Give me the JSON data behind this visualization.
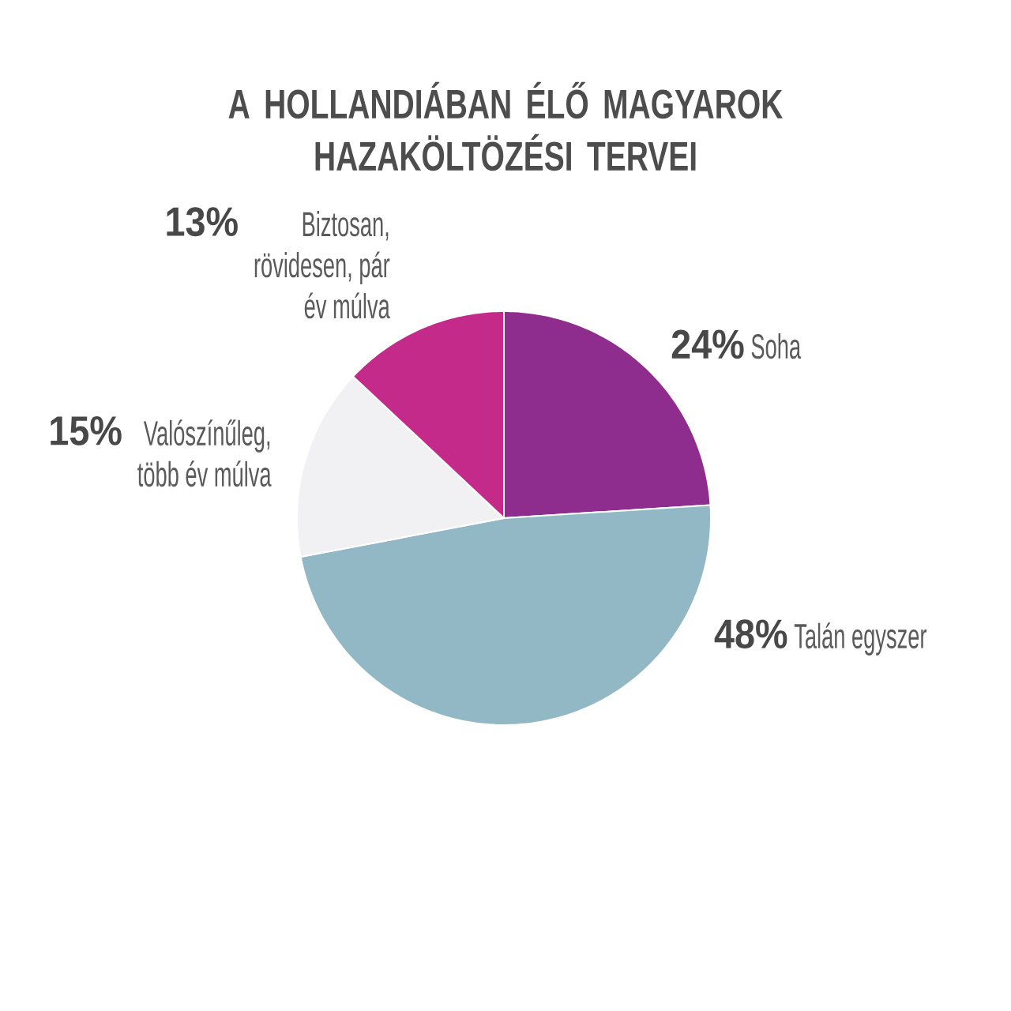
{
  "chart_data": {
    "type": "pie",
    "title": "A HOLLANDIÁBAN ÉLŐ MAGYAROK HAZAKÖLTÖZÉSI TERVEI",
    "categories": [
      "Soha",
      "Talán egyszer",
      "Valószínűleg, több év múlva",
      "Biztosan, rövidesen, pár év múlva"
    ],
    "values": [
      24,
      48,
      15,
      13
    ],
    "colors": [
      "#8e2d8e",
      "#93b8c5",
      "#f1f1f3",
      "#c42a8a"
    ],
    "value_labels": [
      "24%",
      "48%",
      "15%",
      "13%"
    ]
  }
}
